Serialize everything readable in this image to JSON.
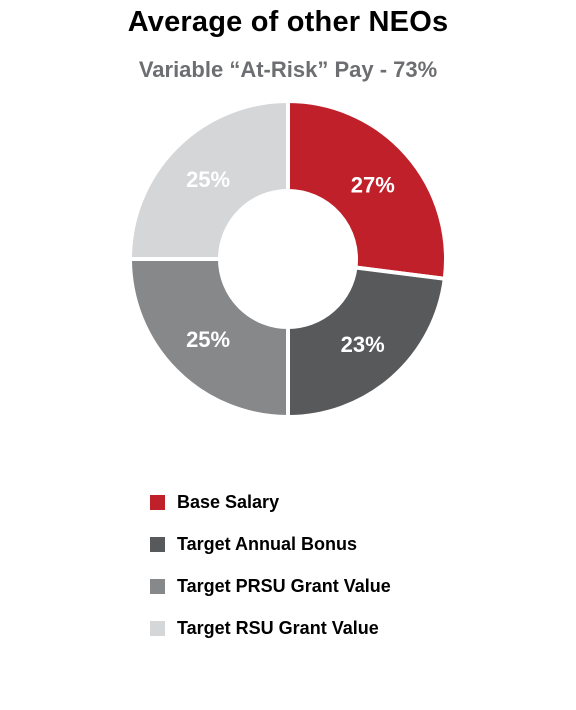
{
  "chart_data": {
    "type": "pie",
    "title": "Average of other NEOs",
    "subtitle": "Variable “At-Risk” Pay - 73%",
    "categories": [
      "Base Salary",
      "Target Annual Bonus",
      "Target PRSU Grant Value",
      "Target RSU Grant Value"
    ],
    "values": [
      27,
      23,
      25,
      25
    ],
    "labels": [
      "27%",
      "23%",
      "25%",
      "25%"
    ],
    "colors": [
      "#c0202a",
      "#58595b",
      "#87888a",
      "#d5d6d8"
    ],
    "donut": true,
    "legend_position": "bottom"
  }
}
